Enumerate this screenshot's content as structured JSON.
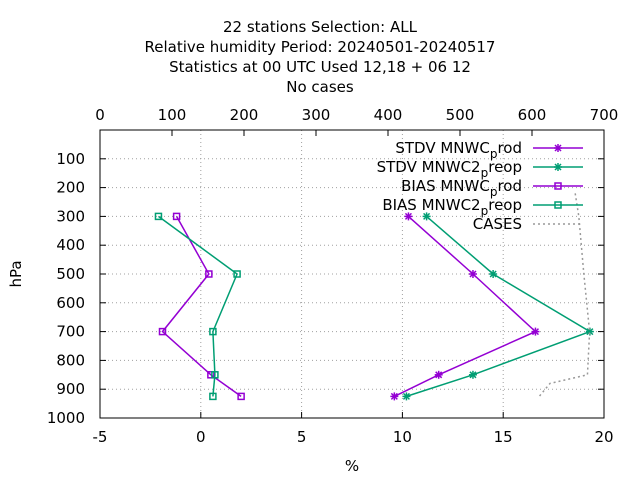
{
  "chart_data": {
    "type": "line",
    "title_lines": [
      "22 stations Selection: ALL",
      "Relative humidity  Period: 20240501-20240517",
      "Statistics at 00 UTC  Used  12,18 + 06 12",
      "No cases"
    ],
    "xlabel": "%",
    "ylabel": "hPa",
    "xlim": [
      -5,
      20
    ],
    "x2lim": [
      0,
      700
    ],
    "ylim": [
      1000,
      0
    ],
    "x_ticks": [
      -5,
      0,
      5,
      10,
      15,
      20
    ],
    "x2_ticks": [
      0,
      100,
      200,
      300,
      400,
      500,
      600,
      700
    ],
    "y_ticks": [
      100,
      200,
      300,
      400,
      500,
      600,
      700,
      800,
      900,
      1000
    ],
    "grid": true,
    "legend_position": "top-right",
    "series": [
      {
        "name": "STDV MNWC_prod",
        "legend_text": [
          "STDV MNWC",
          "p",
          "rod"
        ],
        "color": "#9400d3",
        "marker": "star",
        "axis": "x1",
        "y": [
          300,
          500,
          700,
          850,
          925
        ],
        "x": [
          10.3,
          13.5,
          16.6,
          11.8,
          9.6
        ]
      },
      {
        "name": "STDV MNWC2_preop",
        "legend_text": [
          "STDV MNWC2",
          "p",
          "reop"
        ],
        "color": "#009e73",
        "marker": "star",
        "axis": "x1",
        "y": [
          300,
          500,
          700,
          850,
          925
        ],
        "x": [
          11.2,
          14.5,
          19.3,
          13.5,
          10.2
        ]
      },
      {
        "name": "BIAS MNWC_prod",
        "legend_text": [
          "BIAS MNWC",
          "p",
          "rod"
        ],
        "color": "#9400d3",
        "marker": "square",
        "axis": "x1",
        "y": [
          300,
          500,
          700,
          850,
          925
        ],
        "x": [
          -1.2,
          0.4,
          -1.9,
          0.5,
          2.0
        ]
      },
      {
        "name": "BIAS MNWC2_preop",
        "legend_text": [
          "BIAS MNWC2",
          "p",
          "reop"
        ],
        "color": "#009e73",
        "marker": "square",
        "axis": "x1",
        "y": [
          300,
          500,
          700,
          850,
          925
        ],
        "x": [
          -2.1,
          1.8,
          0.6,
          0.7,
          0.6
        ]
      },
      {
        "name": "CASES",
        "legend_text": [
          "CASES"
        ],
        "color": "#999999",
        "marker": "none",
        "dashed": true,
        "axis": "x2",
        "y": [
          220,
          300,
          500,
          700,
          850,
          880,
          925
        ],
        "x": [
          660,
          665,
          672,
          680,
          677,
          625,
          610
        ]
      }
    ]
  }
}
